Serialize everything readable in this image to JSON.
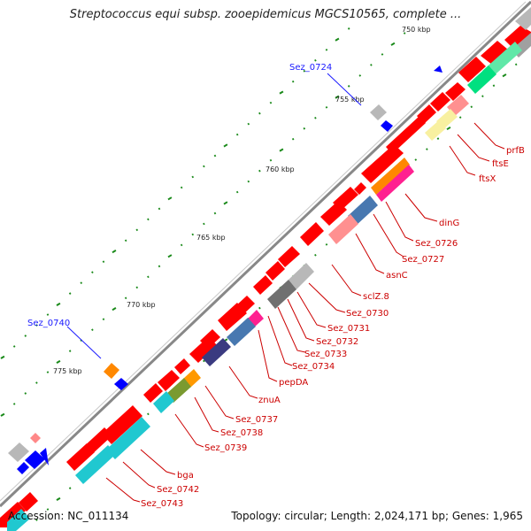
{
  "title": "Streptococcus equi subsp. zooepidemicus MGCS10565, complete ...",
  "footer": {
    "accession": "Accession: NC_011134",
    "topology": "Topology: circular; Length: 2,024,171 bp; Genes: 1,965"
  },
  "colors": {
    "backbone": "#8a8a8a",
    "forward_gene": "#ff0000",
    "gene_label": "#cc0000",
    "callout_label": "#1a1aff",
    "tick": "#1a8a1a",
    "blue_feature": "#0000ff",
    "gray_feature": "#b8b8b8"
  },
  "scale_labels": [
    "750 kbp",
    "755 kbp",
    "760 kbp",
    "765 kbp",
    "770 kbp",
    "775 kbp"
  ],
  "callouts": [
    "Sez_0724",
    "Sez_0740"
  ],
  "gene_labels": [
    "prfB",
    "ftsE",
    "ftsX",
    "dinG",
    "Sez_0726",
    "Sez_0727",
    "asnC",
    "sclZ.8",
    "Sez_0730",
    "Sez_0731",
    "Sez_0732",
    "Sez_0733",
    "Sez_0734",
    "pepDA",
    "znuA",
    "Sez_0737",
    "Sez_0738",
    "Sez_0739",
    "bga",
    "Sez_0742",
    "Sez_0743"
  ]
}
